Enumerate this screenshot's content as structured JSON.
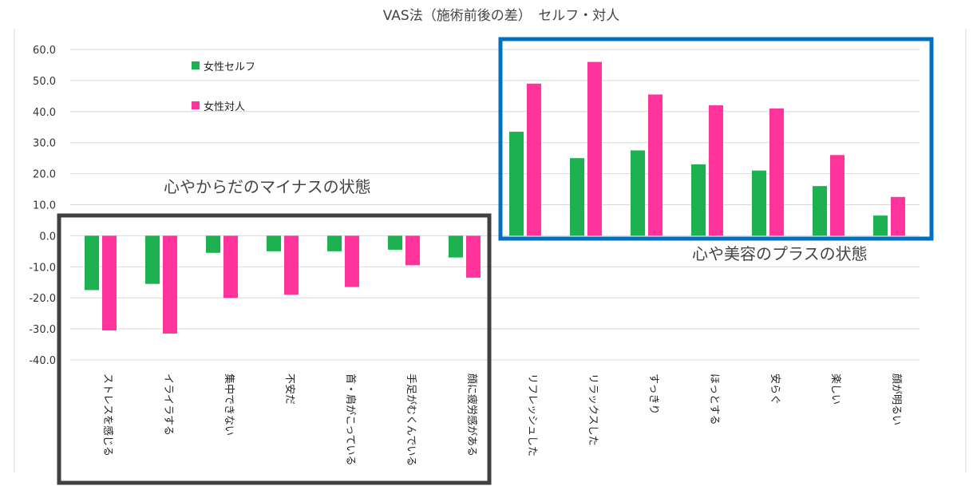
{
  "chart_data": {
    "type": "bar",
    "title": "VAS法（施術前後の差）　セルフ・対人",
    "xlabel": "",
    "ylabel": "",
    "ylim": [
      -40,
      60
    ],
    "yticks": [
      "60.0",
      "50.0",
      "40.0",
      "30.0",
      "20.0",
      "10.0",
      "0.0",
      "-10.0",
      "-20.0",
      "-30.0",
      "-40.0"
    ],
    "grid": true,
    "legend": "top-left",
    "categories": [
      "ストレスを感じる",
      "イライラする",
      "集中できない",
      "不安だ",
      "首・肩がこっている",
      "手足がむくんでいる",
      "顔に疲労感がある",
      "リフレッシュした",
      "リラックスした",
      "すっきり",
      "ほっとする",
      "安らぐ",
      "楽しい",
      "顔が明るい"
    ],
    "series": [
      {
        "name": "女性セルフ",
        "color": "#1db152",
        "values": [
          -17.5,
          -15.5,
          -5.5,
          -5,
          -5,
          -4.5,
          -7,
          33.5,
          25,
          27.5,
          23,
          21,
          16,
          6.5
        ]
      },
      {
        "name": "女性対人",
        "color": "#ff3399",
        "values": [
          -30.5,
          -31.5,
          -20,
          -19,
          -16.5,
          -9.5,
          -13.5,
          49,
          56,
          45.5,
          42,
          41,
          26,
          12.5
        ]
      }
    ],
    "annotations": [
      "心やからだのマイナスの状態",
      "心や美容のプラスの状態"
    ],
    "highlight_colors": {
      "negative_box": "#404040",
      "positive_box": "#0070c0"
    }
  }
}
